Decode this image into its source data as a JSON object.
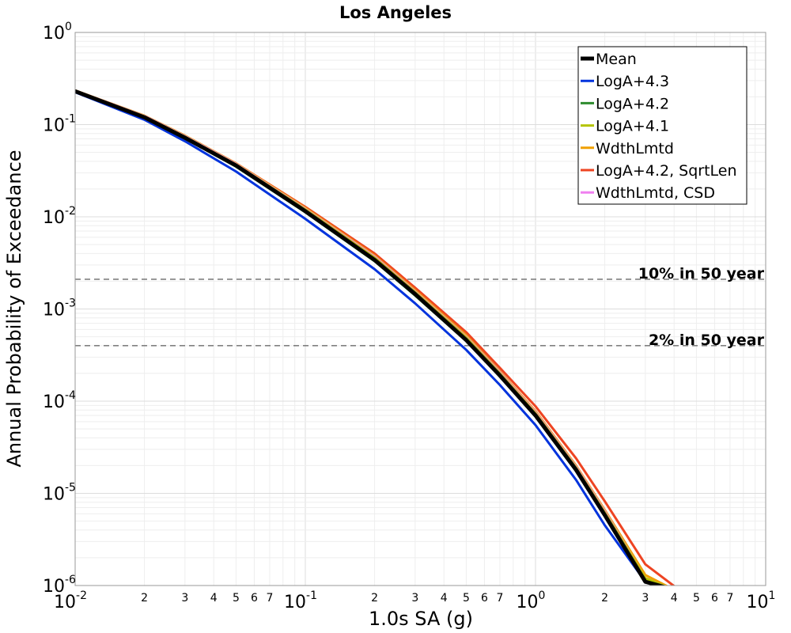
{
  "chart_data": {
    "type": "line",
    "title": "Los Angeles",
    "xlabel": "1.0s SA (g)",
    "ylabel": "Annual Probability of Exceedance",
    "xscale": "log",
    "yscale": "log",
    "xlim": [
      0.01,
      10
    ],
    "ylim": [
      1e-06,
      1
    ],
    "grid": true,
    "legend_position": "top-right",
    "x_major_ticks": [
      {
        "value": 0.01,
        "base": "10",
        "exp": "-2"
      },
      {
        "value": 0.1,
        "base": "10",
        "exp": "-1"
      },
      {
        "value": 1,
        "base": "10",
        "exp": "0"
      },
      {
        "value": 10,
        "base": "10",
        "exp": "1"
      }
    ],
    "x_minor_tick_labels": [
      "2",
      "3",
      "4",
      "5",
      "6",
      "7"
    ],
    "y_major_ticks": [
      {
        "value": 1,
        "base": "10",
        "exp": "0"
      },
      {
        "value": 0.1,
        "base": "10",
        "exp": "-1"
      },
      {
        "value": 0.01,
        "base": "10",
        "exp": "-2"
      },
      {
        "value": 0.001,
        "base": "10",
        "exp": "-3"
      },
      {
        "value": 0.0001,
        "base": "10",
        "exp": "-4"
      },
      {
        "value": 1e-05,
        "base": "10",
        "exp": "-5"
      },
      {
        "value": 1e-06,
        "base": "10",
        "exp": "-6"
      }
    ],
    "reference_lines": [
      {
        "label": "10% in 50 year",
        "y": 0.0021
      },
      {
        "label": "2% in 50 year",
        "y": 0.0004
      }
    ],
    "series": [
      {
        "name": "Mean",
        "color": "#000000",
        "width": 5,
        "x": [
          0.01,
          0.02,
          0.03,
          0.05,
          0.1,
          0.2,
          0.3,
          0.5,
          0.7,
          1.0,
          1.5,
          2.0,
          3.0,
          4.0
        ],
        "y": [
          0.23,
          0.12,
          0.072,
          0.036,
          0.0115,
          0.0034,
          0.00145,
          0.00046,
          0.00019,
          7e-05,
          1.8e-05,
          5.8e-06,
          1.1e-06,
          9e-07
        ]
      },
      {
        "name": "LogA+4.3",
        "color": "#0033dd",
        "width": 3,
        "x": [
          0.01,
          0.02,
          0.03,
          0.05,
          0.1,
          0.2,
          0.3,
          0.5,
          0.7,
          1.0,
          1.5,
          2.0,
          3.0,
          3.9
        ],
        "y": [
          0.225,
          0.113,
          0.066,
          0.031,
          0.0095,
          0.0027,
          0.00115,
          0.00036,
          0.00015,
          5.5e-05,
          1.4e-05,
          4.5e-06,
          1.1e-06,
          9e-07
        ]
      },
      {
        "name": "LogA+4.2",
        "color": "#2e8b2e",
        "width": 3,
        "x": [
          0.01,
          0.02,
          0.03,
          0.05,
          0.1,
          0.2,
          0.3,
          0.5,
          0.7,
          1.0,
          1.5,
          2.0,
          3.0,
          4.0
        ],
        "y": [
          0.23,
          0.12,
          0.071,
          0.035,
          0.0112,
          0.0033,
          0.0014,
          0.00045,
          0.000185,
          6.8e-05,
          1.75e-05,
          5.7e-06,
          1.1e-06,
          9e-07
        ]
      },
      {
        "name": "LogA+4.1",
        "color": "#b5c400",
        "width": 3,
        "x": [
          0.01,
          0.02,
          0.03,
          0.05,
          0.1,
          0.2,
          0.3,
          0.5,
          0.7,
          1.0,
          1.5,
          2.0,
          3.0,
          4.0
        ],
        "y": [
          0.232,
          0.123,
          0.074,
          0.037,
          0.012,
          0.0036,
          0.00152,
          0.00049,
          0.0002,
          7.4e-05,
          1.9e-05,
          6.2e-06,
          1.2e-06,
          9e-07
        ]
      },
      {
        "name": "WdthLmtd",
        "color": "#f0a000",
        "width": 3,
        "x": [
          0.01,
          0.02,
          0.03,
          0.05,
          0.1,
          0.2,
          0.3,
          0.5,
          0.7,
          1.0,
          1.5,
          2.0,
          3.0,
          4.0
        ],
        "y": [
          0.235,
          0.125,
          0.076,
          0.038,
          0.0125,
          0.0038,
          0.0016,
          0.00052,
          0.00021,
          7.8e-05,
          2e-05,
          6.6e-06,
          1.3e-06,
          9e-07
        ]
      },
      {
        "name": "LogA+4.2, SqrtLen",
        "color": "#ee4422",
        "width": 3,
        "x": [
          0.01,
          0.02,
          0.03,
          0.05,
          0.1,
          0.2,
          0.3,
          0.5,
          0.7,
          1.0,
          1.5,
          2.0,
          3.0,
          4.2
        ],
        "y": [
          0.232,
          0.123,
          0.075,
          0.038,
          0.0128,
          0.004,
          0.0017,
          0.00056,
          0.00023,
          8.8e-05,
          2.4e-05,
          8.2e-06,
          1.7e-06,
          9e-07
        ]
      },
      {
        "name": "WdthLmtd, CSD",
        "color": "#f080f0",
        "width": 3,
        "x": [
          0.01,
          0.02,
          0.03,
          0.05,
          0.1,
          0.2,
          0.3,
          0.5,
          0.7,
          1.0,
          1.5,
          2.0,
          3.0,
          4.0
        ],
        "y": [
          0.234,
          0.124,
          0.075,
          0.0375,
          0.0122,
          0.0037,
          0.00155,
          0.0005,
          0.000205,
          7.6e-05,
          1.95e-05,
          6.4e-06,
          1.2e-06,
          9e-07
        ]
      }
    ]
  }
}
